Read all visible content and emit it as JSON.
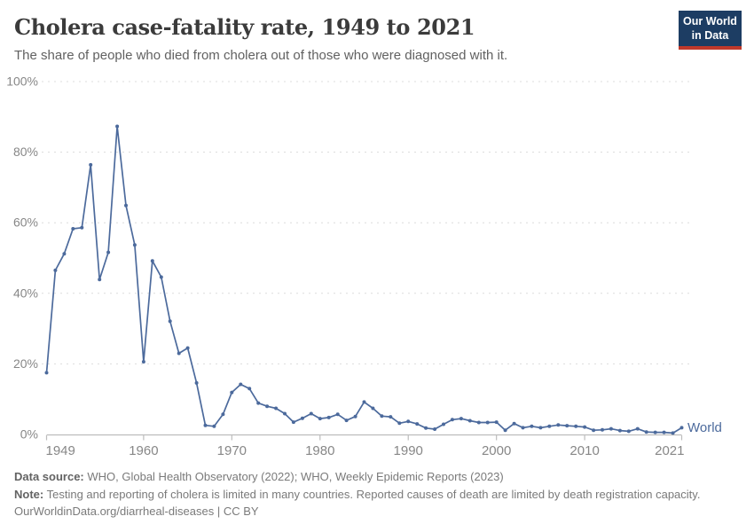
{
  "header": {
    "title": "Cholera case-fatality rate, 1949 to 2021",
    "subtitle": "The share of people who died from cholera out of those who were diagnosed with it."
  },
  "logo": {
    "line1": "Our World",
    "line2": "in Data",
    "bg_color": "#1d3d63",
    "accent_color": "#c0392b"
  },
  "chart_data": {
    "type": "line",
    "title": "Cholera case-fatality rate, 1949 to 2021",
    "xlabel": "",
    "ylabel": "",
    "xlim": [
      1949,
      2021
    ],
    "ylim": [
      0,
      100
    ],
    "x_ticks": [
      1949,
      1960,
      1970,
      1980,
      1990,
      2000,
      2010,
      2021
    ],
    "y_ticks": [
      0,
      20,
      40,
      60,
      80,
      100
    ],
    "y_tick_suffix": "%",
    "grid": "horizontal-dashed",
    "legend_position": "end-of-line",
    "grid_color": "#dcdcdc",
    "axis_color": "#bdbdbd",
    "tick_label_color": "#878787",
    "series": [
      {
        "name": "World",
        "color": "#4C6A9C",
        "x": [
          1949,
          1950,
          1951,
          1952,
          1953,
          1954,
          1955,
          1956,
          1957,
          1958,
          1959,
          1960,
          1961,
          1962,
          1963,
          1964,
          1965,
          1966,
          1967,
          1968,
          1969,
          1970,
          1971,
          1972,
          1973,
          1974,
          1975,
          1976,
          1977,
          1978,
          1979,
          1980,
          1981,
          1982,
          1983,
          1984,
          1985,
          1986,
          1987,
          1988,
          1989,
          1990,
          1991,
          1992,
          1993,
          1994,
          1995,
          1996,
          1997,
          1998,
          1999,
          2000,
          2001,
          2002,
          2003,
          2004,
          2005,
          2006,
          2007,
          2008,
          2009,
          2010,
          2011,
          2012,
          2013,
          2014,
          2015,
          2016,
          2017,
          2018,
          2019,
          2020,
          2021
        ],
        "values": [
          17.5,
          46.5,
          51.2,
          58.3,
          58.6,
          76.4,
          43.9,
          51.6,
          87.3,
          64.9,
          53.7,
          20.6,
          49.2,
          44.6,
          32.1,
          23.0,
          24.5,
          14.6,
          2.6,
          2.3,
          5.7,
          11.9,
          14.2,
          13.0,
          8.9,
          8.0,
          7.4,
          5.9,
          3.5,
          4.6,
          5.9,
          4.5,
          4.8,
          5.7,
          4.0,
          5.1,
          9.2,
          7.4,
          5.2,
          5.0,
          3.2,
          3.7,
          3.0,
          1.8,
          1.5,
          2.9,
          4.2,
          4.5,
          3.9,
          3.4,
          3.4,
          3.5,
          1.2,
          3.1,
          1.9,
          2.3,
          1.9,
          2.3,
          2.7,
          2.5,
          2.3,
          2.1,
          1.2,
          1.3,
          1.6,
          1.1,
          0.9,
          1.6,
          0.7,
          0.6,
          0.6,
          0.4,
          1.9
        ]
      }
    ]
  },
  "footer": {
    "datasource_label": "Data source:",
    "datasource_text": "WHO, Global Health Observatory (2022); WHO, Weekly Epidemic Reports (2023)",
    "note_label": "Note:",
    "note_text": "Testing and reporting of cholera is limited in many countries. Reported causes of death are limited by death registration capacity.",
    "url": "OurWorldinData.org/diarrheal-diseases",
    "separator": " | ",
    "license": "CC BY"
  }
}
